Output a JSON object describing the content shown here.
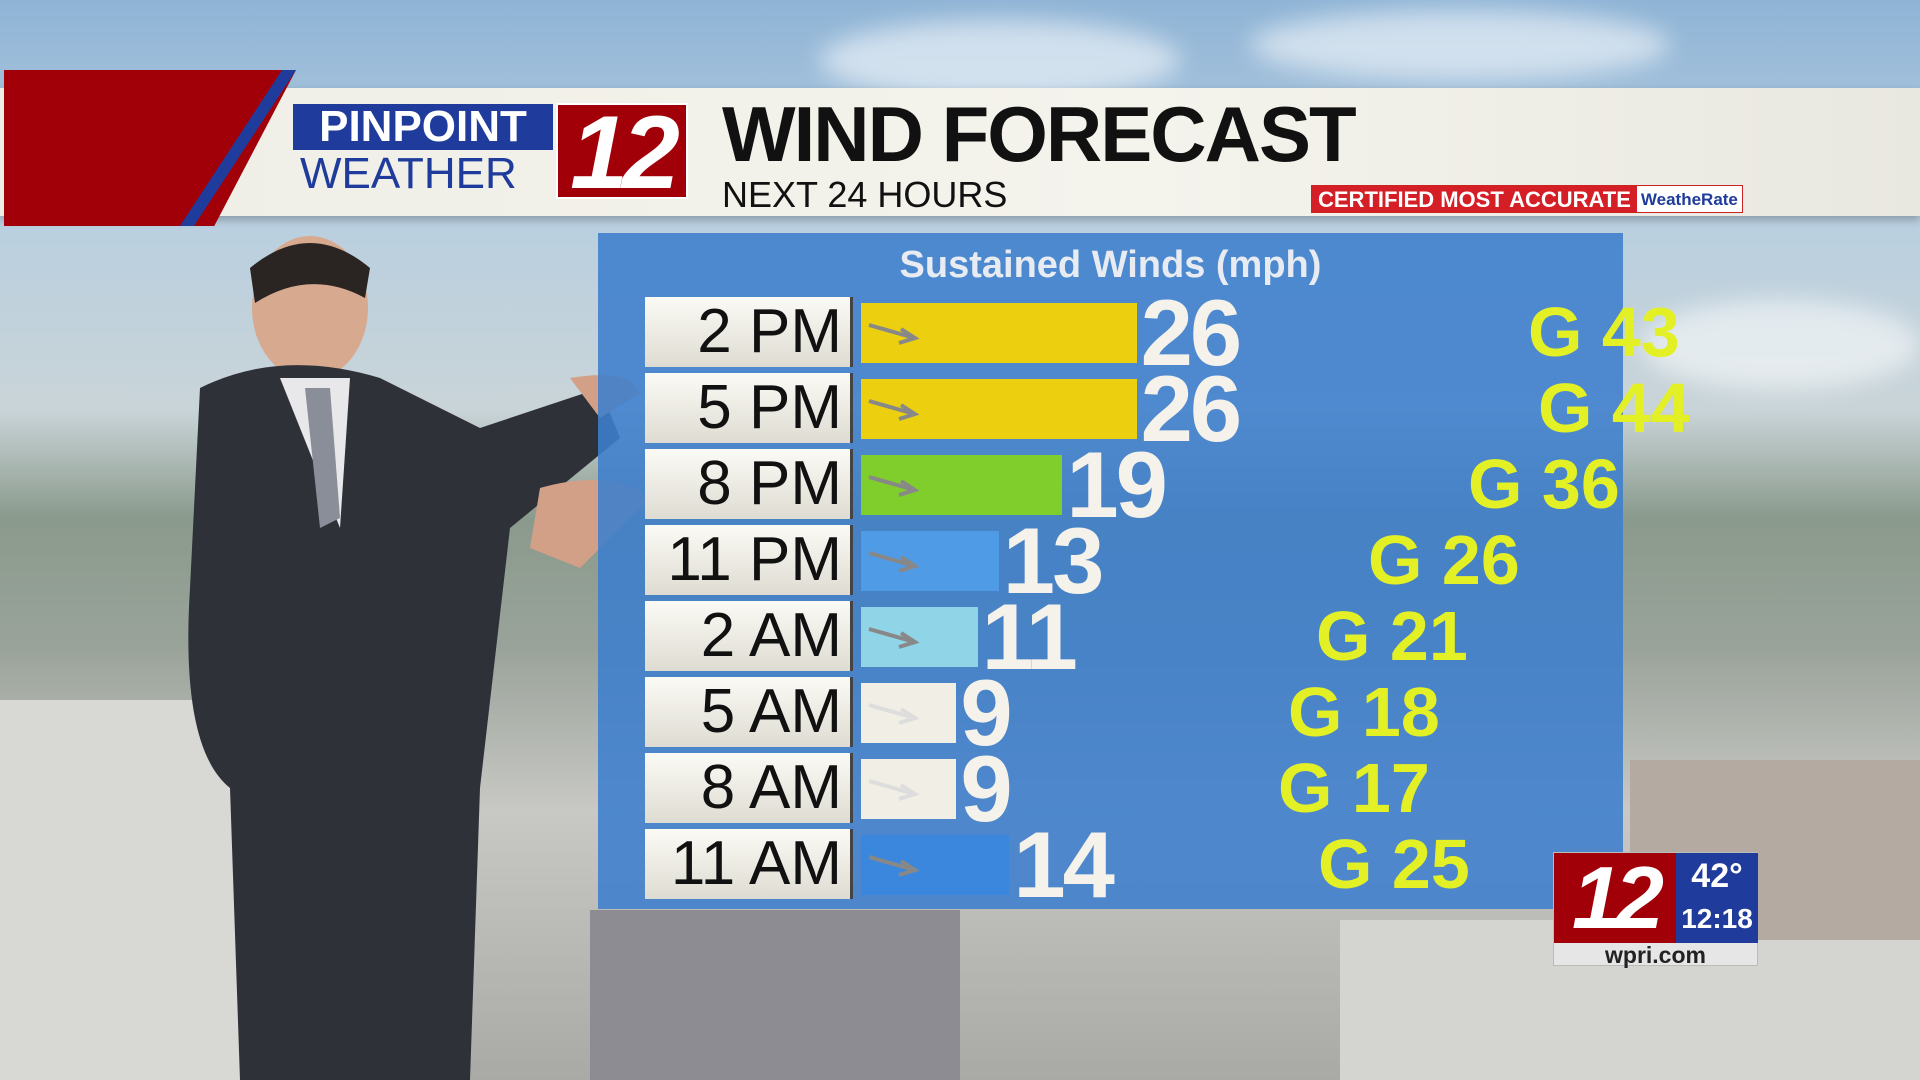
{
  "header": {
    "logo_top": "PINPOINT",
    "logo_bottom": "WEATHER",
    "logo_number": "12",
    "title": "WIND FORECAST",
    "subtitle": "NEXT 24 HOURS",
    "certified": "CERTIFIED MOST ACCURATE",
    "certifier": "WeatheRate"
  },
  "chart_data": {
    "type": "bar",
    "title": "Sustained Winds (mph)",
    "categories": [
      "2 PM",
      "5 PM",
      "8 PM",
      "11 PM",
      "2 AM",
      "5 AM",
      "8 AM",
      "11 AM"
    ],
    "values": [
      26,
      26,
      19,
      13,
      11,
      9,
      9,
      14
    ],
    "gusts": [
      "G 43",
      "G 44",
      "G 36",
      "G 26",
      "G 21",
      "G 18",
      "G 17",
      "G 25"
    ],
    "bar_colors": [
      "#ecd00f",
      "#ecd00f",
      "#7fce2b",
      "#4f9be6",
      "#90d4e8",
      "#f1eee6",
      "#f1eee6",
      "#3c87de"
    ],
    "gust_color": "#e4f026"
  },
  "bug": {
    "number": "12",
    "temperature": "42°",
    "time": "12:18",
    "site": "wpri.com"
  }
}
